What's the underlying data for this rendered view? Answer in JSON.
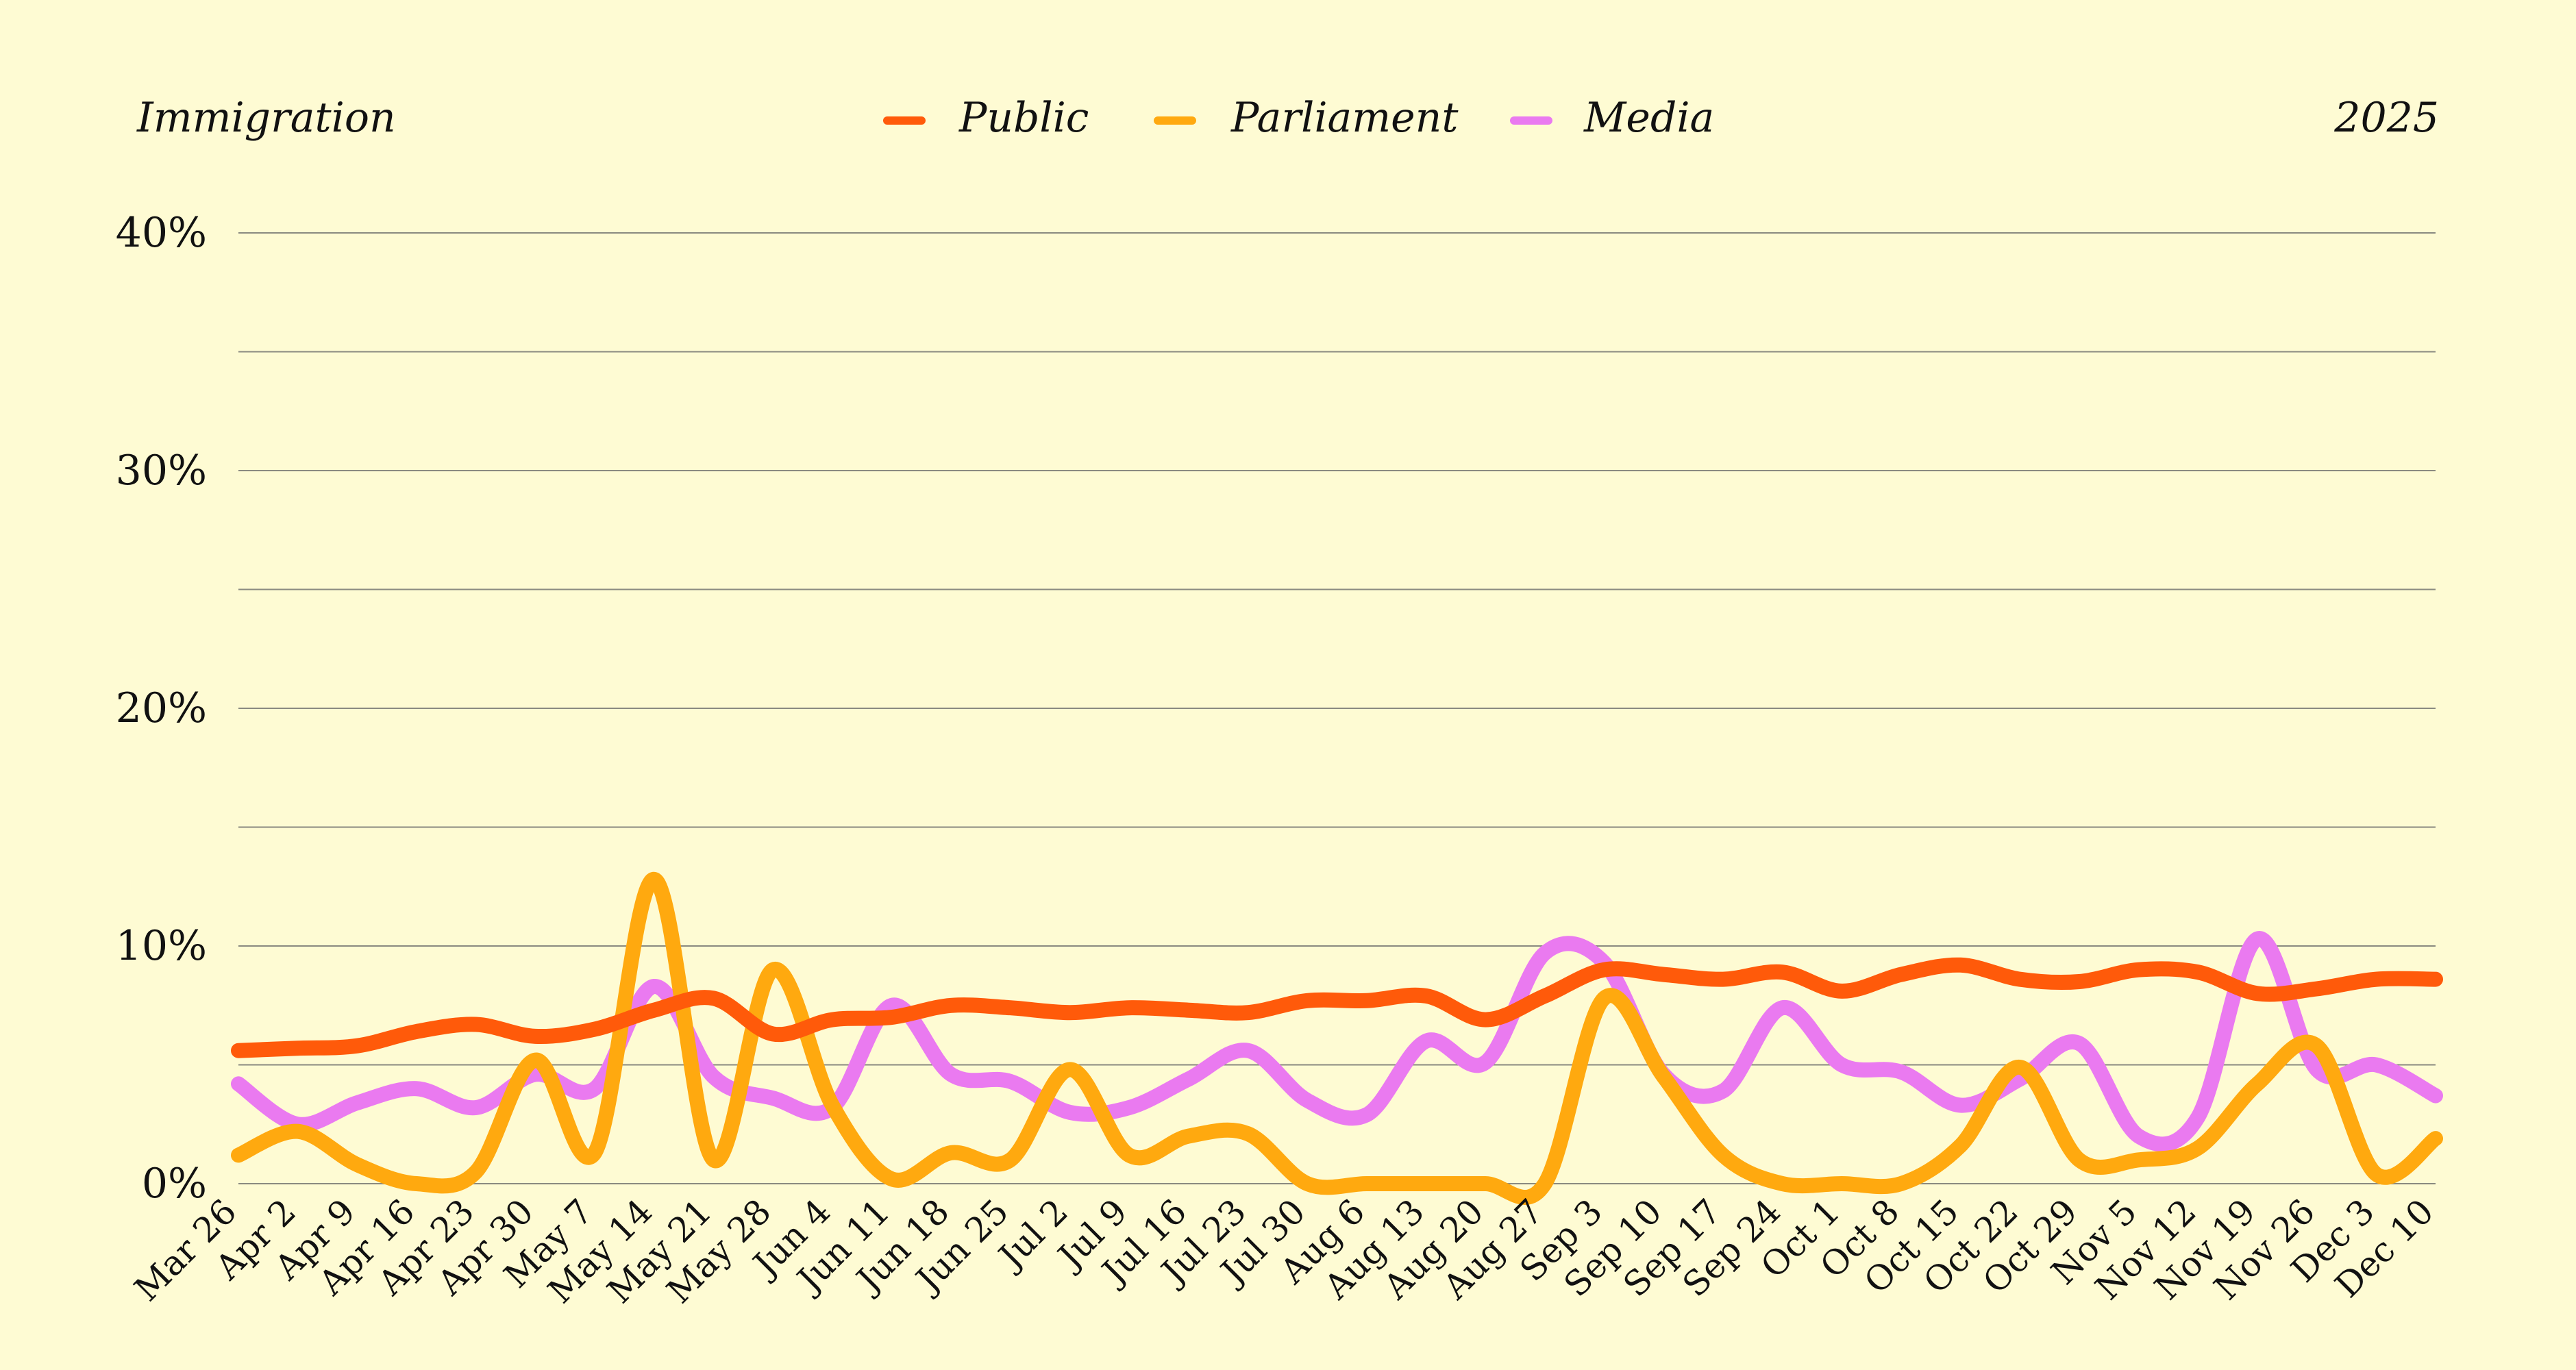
{
  "header": {
    "topic": "Immigration",
    "year": "2025"
  },
  "colors": {
    "background": "#fefbd3",
    "public": "#ff5a0a",
    "parliament": "#ffa90f",
    "media": "#ea7af0",
    "grid": "#8a8a80"
  },
  "chart_data": {
    "type": "line",
    "categories": [
      "Mar 26",
      "Apr 2",
      "Apr 9",
      "Apr 16",
      "Apr 23",
      "Apr 30",
      "May 7",
      "May 14",
      "May 21",
      "May 28",
      "Jun 4",
      "Jun 11",
      "Jun 18",
      "Jun 25",
      "Jul 2",
      "Jul 9",
      "Jul 16",
      "Jul 23",
      "Jul 30",
      "Aug 6",
      "Aug 13",
      "Aug 20",
      "Aug 27",
      "Sep 3",
      "Sep 10",
      "Sep 17",
      "Sep 24",
      "Oct 1",
      "Oct 8",
      "Oct 15",
      "Oct 22",
      "Oct 29",
      "Nov 5",
      "Nov 12",
      "Nov 19",
      "Nov 26",
      "Dec 3",
      "Dec 10"
    ],
    "series": [
      {
        "name": "Public",
        "color": "#ff5a0a",
        "values": [
          5.6,
          5.7,
          5.8,
          6.4,
          6.7,
          6.2,
          6.5,
          7.3,
          7.8,
          6.3,
          6.9,
          7.0,
          7.5,
          7.4,
          7.2,
          7.4,
          7.3,
          7.2,
          7.7,
          7.7,
          7.9,
          6.9,
          7.9,
          9.0,
          8.8,
          8.6,
          8.9,
          8.1,
          8.8,
          9.2,
          8.6,
          8.5,
          9.0,
          8.9,
          8.0,
          8.2,
          8.6,
          8.6
        ]
      },
      {
        "name": "Parliament",
        "color": "#ffa90f",
        "values": [
          1.2,
          2.2,
          0.8,
          0.0,
          0.5,
          5.2,
          1.3,
          12.8,
          1.0,
          9.0,
          3.3,
          0.2,
          1.3,
          1.0,
          4.8,
          1.2,
          2.0,
          2.1,
          0.0,
          0.0,
          0.0,
          0.0,
          0.0,
          7.8,
          4.5,
          1.2,
          0.0,
          0.0,
          0.0,
          1.6,
          4.9,
          1.0,
          1.0,
          1.5,
          4.2,
          5.8,
          0.4,
          1.9
        ]
      },
      {
        "name": "Media",
        "color": "#ea7af0",
        "values": [
          4.2,
          2.5,
          3.4,
          4.0,
          3.2,
          4.6,
          4.0,
          8.3,
          4.5,
          3.6,
          3.2,
          7.5,
          4.6,
          4.3,
          3.0,
          3.2,
          4.4,
          5.6,
          3.5,
          2.9,
          6.0,
          5.1,
          9.7,
          9.3,
          4.6,
          3.9,
          7.4,
          5.0,
          4.7,
          3.3,
          4.4,
          5.9,
          2.0,
          2.8,
          10.3,
          4.8,
          5.0,
          3.7
        ]
      }
    ],
    "y_ticks": [
      "0%",
      "10%",
      "20%",
      "30%",
      "40%"
    ],
    "ylim": [
      0,
      40
    ],
    "y_tick_values": [
      0,
      10,
      20,
      30,
      40
    ],
    "y_grid_values": [
      0,
      5,
      10,
      15,
      20,
      25,
      30,
      35,
      40
    ],
    "grid": true,
    "legend_placement": "top-center"
  }
}
